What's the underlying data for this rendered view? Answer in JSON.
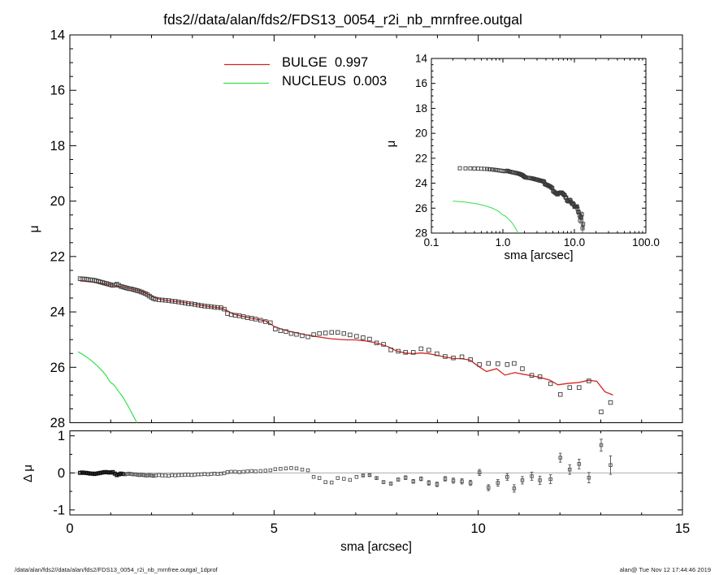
{
  "page": {
    "footer_left": "/data/alan/fds2//data/alan/fds2/FDS13_0054_r2i_nb_mrnfree.outgal_1dprof",
    "footer_right": "alan@  Tue Nov 12 17:44:46 2019"
  },
  "chart_data": {
    "type": "scatter",
    "title": "fds2//data/alan/fds2/FDS13_0054_r2i_nb_mrnfree.outgal",
    "legend": [
      {
        "label": "BULGE",
        "value": "0.997",
        "color": "#d42422"
      },
      {
        "label": "NUCLEUS",
        "value": "0.003",
        "color": "#35e04c"
      }
    ],
    "colors": {
      "frame": "#000000",
      "data_symbol": "#3a3a3a",
      "residual_symbol": "#505050",
      "bulge": "#d42422",
      "nucleus": "#35e04c",
      "zero_line": "#ababab",
      "background": "#ffffff"
    },
    "main_panel": {
      "ylabel": "μ",
      "xlim": [
        0,
        15
      ],
      "ylim": [
        28,
        14
      ],
      "x_major_ticks": [
        0,
        5,
        10,
        15
      ],
      "x_minor_step": 1,
      "y_major_ticks": [
        14,
        16,
        18,
        20,
        22,
        24,
        26,
        28
      ],
      "y_minor_step": 0.5,
      "grid": false
    },
    "inset_panel": {
      "xlabel": "sma [arcsec]",
      "ylabel": "μ",
      "xscale": "log",
      "xlim": [
        0.1,
        100.0
      ],
      "ylim": [
        28,
        14
      ],
      "x_major_ticks": [
        0.1,
        1.0,
        10.0,
        100.0
      ],
      "x_tick_labels": [
        "0.1",
        "1.0",
        "10.0",
        "100.0"
      ],
      "y_major_ticks": [
        14,
        16,
        18,
        20,
        22,
        24,
        26,
        28
      ],
      "y_minor_step": 0.5
    },
    "residual_panel": {
      "xlabel": "sma [arcsec]",
      "ylabel": "Δ μ",
      "xlim": [
        0,
        15
      ],
      "ylim": [
        -1.135,
        1.135
      ],
      "x_major_ticks": [
        0,
        5,
        10,
        15
      ],
      "x_minor_step": 1,
      "y_major_ticks": [
        -1,
        0,
        1
      ],
      "y_minor_step": 0.5
    },
    "series": {
      "data": [
        [
          0.25,
          22.8
        ],
        [
          0.3,
          22.81
        ],
        [
          0.35,
          22.81
        ],
        [
          0.4,
          22.82
        ],
        [
          0.45,
          22.83
        ],
        [
          0.5,
          22.84
        ],
        [
          0.55,
          22.85
        ],
        [
          0.6,
          22.86
        ],
        [
          0.65,
          22.88
        ],
        [
          0.7,
          22.9
        ],
        [
          0.75,
          22.92
        ],
        [
          0.8,
          22.94
        ],
        [
          0.85,
          22.96
        ],
        [
          0.9,
          22.98
        ],
        [
          0.95,
          23.0
        ],
        [
          1.0,
          23.02
        ],
        [
          1.05,
          23.04
        ],
        [
          1.1,
          23.03
        ],
        [
          1.15,
          23.0
        ],
        [
          1.2,
          23.04
        ],
        [
          1.25,
          23.08
        ],
        [
          1.3,
          23.1
        ],
        [
          1.35,
          23.12
        ],
        [
          1.4,
          23.14
        ],
        [
          1.45,
          23.16
        ],
        [
          1.5,
          23.17
        ],
        [
          1.55,
          23.19
        ],
        [
          1.6,
          23.21
        ],
        [
          1.65,
          23.23
        ],
        [
          1.7,
          23.25
        ],
        [
          1.75,
          23.28
        ],
        [
          1.8,
          23.31
        ],
        [
          1.85,
          23.34
        ],
        [
          1.9,
          23.38
        ],
        [
          1.95,
          23.43
        ],
        [
          2.0,
          23.48
        ],
        [
          2.05,
          23.52
        ],
        [
          2.1,
          23.54
        ],
        [
          2.18,
          23.56
        ],
        [
          2.26,
          23.57
        ],
        [
          2.34,
          23.58
        ],
        [
          2.42,
          23.59
        ],
        [
          2.5,
          23.61
        ],
        [
          2.58,
          23.62
        ],
        [
          2.66,
          23.64
        ],
        [
          2.74,
          23.66
        ],
        [
          2.82,
          23.68
        ],
        [
          2.9,
          23.7
        ],
        [
          2.98,
          23.71
        ],
        [
          3.06,
          23.73
        ],
        [
          3.14,
          23.75
        ],
        [
          3.22,
          23.77
        ],
        [
          3.3,
          23.79
        ],
        [
          3.38,
          23.8
        ],
        [
          3.46,
          23.81
        ],
        [
          3.54,
          23.83
        ],
        [
          3.62,
          23.84
        ],
        [
          3.7,
          23.85
        ],
        [
          3.78,
          23.9
        ],
        [
          3.86,
          24.06
        ],
        [
          3.95,
          24.1
        ],
        [
          4.05,
          24.12
        ],
        [
          4.15,
          24.14
        ],
        [
          4.25,
          24.17
        ],
        [
          4.35,
          24.21
        ],
        [
          4.45,
          24.23
        ],
        [
          4.55,
          24.26
        ],
        [
          4.67,
          24.3
        ],
        [
          4.79,
          24.35
        ],
        [
          4.91,
          24.39
        ],
        [
          5.03,
          24.62
        ],
        [
          5.16,
          24.68
        ],
        [
          5.29,
          24.71
        ],
        [
          5.42,
          24.78
        ],
        [
          5.55,
          24.81
        ],
        [
          5.69,
          24.86
        ],
        [
          5.83,
          24.9
        ],
        [
          5.97,
          24.82
        ],
        [
          6.11,
          24.78
        ],
        [
          6.26,
          24.76
        ],
        [
          6.41,
          24.74
        ],
        [
          6.56,
          24.74
        ],
        [
          6.71,
          24.78
        ],
        [
          6.86,
          24.83
        ],
        [
          7.02,
          24.88
        ],
        [
          7.18,
          24.93
        ],
        [
          7.34,
          24.98
        ],
        [
          7.51,
          25.12
        ],
        [
          7.68,
          25.17
        ],
        [
          7.86,
          25.37
        ],
        [
          8.04,
          25.42
        ],
        [
          8.22,
          25.46
        ],
        [
          8.41,
          25.46
        ],
        [
          8.6,
          25.33
        ],
        [
          8.79,
          25.38
        ],
        [
          8.99,
          25.51
        ],
        [
          9.19,
          25.61
        ],
        [
          9.39,
          25.66
        ],
        [
          9.6,
          25.62
        ],
        [
          9.81,
          25.72
        ],
        [
          10.03,
          25.9,
          0.12
        ],
        [
          10.25,
          25.86,
          0.12
        ],
        [
          10.48,
          25.87,
          0.12
        ],
        [
          10.71,
          25.9,
          0.12
        ],
        [
          10.88,
          25.86,
          0.13
        ],
        [
          11.08,
          26.05,
          0.14
        ],
        [
          11.31,
          26.29,
          0.16
        ],
        [
          11.51,
          26.34,
          0.18
        ],
        [
          11.77,
          26.59,
          0.22
        ],
        [
          12.01,
          26.98,
          0.3
        ],
        [
          12.24,
          26.73,
          0.25
        ],
        [
          12.47,
          26.73,
          0.25
        ],
        [
          12.71,
          26.49,
          0.22
        ],
        [
          13.01,
          27.61,
          0.5
        ],
        [
          13.24,
          27.27,
          0.4
        ]
      ],
      "bulge": [
        [
          0.25,
          22.88
        ],
        [
          0.45,
          22.91
        ],
        [
          0.65,
          22.94
        ],
        [
          0.85,
          22.98
        ],
        [
          1.05,
          23.03
        ],
        [
          1.25,
          23.09
        ],
        [
          1.45,
          23.15
        ],
        [
          1.65,
          23.22
        ],
        [
          1.85,
          23.32
        ],
        [
          2.0,
          23.43
        ],
        [
          2.15,
          23.52
        ],
        [
          2.3,
          23.57
        ],
        [
          2.5,
          23.61
        ],
        [
          2.7,
          23.64
        ],
        [
          2.9,
          23.69
        ],
        [
          3.1,
          23.73
        ],
        [
          3.3,
          23.78
        ],
        [
          3.5,
          23.82
        ],
        [
          3.7,
          23.86
        ],
        [
          3.85,
          23.95
        ],
        [
          4.0,
          24.08
        ],
        [
          4.2,
          24.15
        ],
        [
          4.4,
          24.21
        ],
        [
          4.6,
          24.27
        ],
        [
          4.8,
          24.33
        ],
        [
          5.0,
          24.52
        ],
        [
          5.2,
          24.63
        ],
        [
          5.4,
          24.71
        ],
        [
          5.6,
          24.77
        ],
        [
          5.8,
          24.83
        ],
        [
          6.0,
          24.88
        ],
        [
          6.2,
          24.93
        ],
        [
          6.4,
          24.97
        ],
        [
          6.6,
          24.99
        ],
        [
          6.8,
          25.01
        ],
        [
          7.0,
          25.01
        ],
        [
          7.2,
          25.04
        ],
        [
          7.4,
          25.09
        ],
        [
          7.6,
          25.16
        ],
        [
          7.8,
          25.26
        ],
        [
          8.0,
          25.41
        ],
        [
          8.2,
          25.48
        ],
        [
          8.4,
          25.51
        ],
        [
          8.6,
          25.48
        ],
        [
          8.8,
          25.51
        ],
        [
          9.0,
          25.57
        ],
        [
          9.2,
          25.63
        ],
        [
          9.4,
          25.68
        ],
        [
          9.6,
          25.69
        ],
        [
          9.8,
          25.74
        ],
        [
          10.0,
          25.96
        ],
        [
          10.2,
          26.15
        ],
        [
          10.45,
          26.05
        ],
        [
          10.65,
          26.28
        ],
        [
          10.9,
          26.19
        ],
        [
          11.1,
          26.25
        ],
        [
          11.3,
          26.3
        ],
        [
          11.5,
          26.36
        ],
        [
          11.75,
          26.46
        ],
        [
          11.95,
          26.63
        ],
        [
          12.2,
          26.58
        ],
        [
          12.45,
          26.55
        ],
        [
          12.7,
          26.47
        ],
        [
          12.9,
          26.5
        ],
        [
          13.1,
          26.88
        ],
        [
          13.3,
          27.0
        ]
      ],
      "nucleus": [
        [
          0.2,
          25.44
        ],
        [
          0.3,
          25.52
        ],
        [
          0.4,
          25.62
        ],
        [
          0.5,
          25.73
        ],
        [
          0.6,
          25.85
        ],
        [
          0.7,
          25.99
        ],
        [
          0.8,
          26.14
        ],
        [
          0.9,
          26.32
        ],
        [
          0.95,
          26.45
        ],
        [
          1.0,
          26.55
        ],
        [
          1.05,
          26.6
        ],
        [
          1.1,
          26.67
        ],
        [
          1.2,
          26.88
        ],
        [
          1.3,
          27.08
        ],
        [
          1.4,
          27.33
        ],
        [
          1.5,
          27.6
        ],
        [
          1.58,
          27.83
        ],
        [
          1.64,
          28.0
        ]
      ],
      "residuals": [
        [
          0.25,
          0.0
        ],
        [
          0.3,
          0.01
        ],
        [
          0.35,
          0.0
        ],
        [
          0.4,
          0.0
        ],
        [
          0.45,
          -0.01
        ],
        [
          0.5,
          -0.02
        ],
        [
          0.55,
          -0.02
        ],
        [
          0.6,
          -0.03
        ],
        [
          0.65,
          -0.02
        ],
        [
          0.7,
          -0.01
        ],
        [
          0.75,
          0.0
        ],
        [
          0.8,
          0.01
        ],
        [
          0.85,
          0.02
        ],
        [
          0.9,
          0.02
        ],
        [
          0.95,
          0.01
        ],
        [
          1.0,
          0.01
        ],
        [
          1.05,
          0.02
        ],
        [
          1.1,
          -0.02
        ],
        [
          1.15,
          -0.06
        ],
        [
          1.2,
          -0.04
        ],
        [
          1.25,
          -0.02
        ],
        [
          1.3,
          -0.03
        ],
        [
          1.35,
          -0.04
        ],
        [
          1.4,
          -0.03
        ],
        [
          1.45,
          -0.02
        ],
        [
          1.5,
          -0.03
        ],
        [
          1.55,
          -0.04
        ],
        [
          1.6,
          -0.04
        ],
        [
          1.65,
          -0.05
        ],
        [
          1.7,
          -0.06
        ],
        [
          1.75,
          -0.05
        ],
        [
          1.8,
          -0.06
        ],
        [
          1.85,
          -0.07
        ],
        [
          1.9,
          -0.07
        ],
        [
          1.95,
          -0.06
        ],
        [
          2.0,
          -0.07
        ],
        [
          2.05,
          -0.08
        ],
        [
          2.1,
          -0.07
        ],
        [
          2.18,
          -0.06
        ],
        [
          2.26,
          -0.07
        ],
        [
          2.34,
          -0.07
        ],
        [
          2.42,
          -0.08
        ],
        [
          2.5,
          -0.06
        ],
        [
          2.58,
          -0.07
        ],
        [
          2.66,
          -0.06
        ],
        [
          2.74,
          -0.06
        ],
        [
          2.82,
          -0.05
        ],
        [
          2.9,
          -0.05
        ],
        [
          2.98,
          -0.06
        ],
        [
          3.06,
          -0.05
        ],
        [
          3.14,
          -0.04
        ],
        [
          3.22,
          -0.04
        ],
        [
          3.3,
          -0.03
        ],
        [
          3.38,
          -0.04
        ],
        [
          3.46,
          -0.03
        ],
        [
          3.54,
          -0.02
        ],
        [
          3.62,
          -0.03
        ],
        [
          3.7,
          -0.02
        ],
        [
          3.78,
          -0.01
        ],
        [
          3.86,
          0.02
        ],
        [
          3.95,
          0.03
        ],
        [
          4.05,
          0.03
        ],
        [
          4.15,
          0.02
        ],
        [
          4.25,
          0.03
        ],
        [
          4.35,
          0.04
        ],
        [
          4.45,
          0.05
        ],
        [
          4.55,
          0.04
        ],
        [
          4.67,
          0.05
        ],
        [
          4.79,
          0.06
        ],
        [
          4.91,
          0.07
        ],
        [
          5.03,
          0.1
        ],
        [
          5.16,
          0.11
        ],
        [
          5.29,
          0.12
        ],
        [
          5.42,
          0.13
        ],
        [
          5.55,
          0.12
        ],
        [
          5.69,
          0.09
        ],
        [
          5.83,
          0.07
        ],
        [
          5.97,
          -0.11
        ],
        [
          6.11,
          -0.14
        ],
        [
          6.26,
          -0.25
        ],
        [
          6.41,
          -0.26
        ],
        [
          6.56,
          -0.14
        ],
        [
          6.71,
          -0.16
        ],
        [
          6.86,
          -0.19
        ],
        [
          7.02,
          -0.11
        ],
        [
          7.18,
          -0.07,
          0.03
        ],
        [
          7.34,
          -0.06,
          0.03
        ],
        [
          7.51,
          -0.14,
          0.03
        ],
        [
          7.68,
          -0.25,
          0.04
        ],
        [
          7.86,
          -0.29,
          0.04
        ],
        [
          8.04,
          -0.18,
          0.04
        ],
        [
          8.22,
          -0.13,
          0.05
        ],
        [
          8.41,
          -0.23,
          0.05
        ],
        [
          8.6,
          -0.16,
          0.05
        ],
        [
          8.79,
          -0.27,
          0.06
        ],
        [
          8.99,
          -0.31,
          0.06
        ],
        [
          9.19,
          -0.16,
          0.06
        ],
        [
          9.39,
          -0.21,
          0.07
        ],
        [
          9.6,
          -0.23,
          0.07
        ],
        [
          9.81,
          -0.27,
          0.07
        ],
        [
          10.03,
          0.01,
          0.08
        ],
        [
          10.25,
          -0.4,
          0.08
        ],
        [
          10.48,
          -0.27,
          0.09
        ],
        [
          10.71,
          -0.11,
          0.09
        ],
        [
          10.88,
          -0.42,
          0.1
        ],
        [
          11.08,
          -0.2,
          0.1
        ],
        [
          11.31,
          -0.09,
          0.11
        ],
        [
          11.51,
          -0.2,
          0.11
        ],
        [
          11.77,
          -0.17,
          0.12
        ],
        [
          12.01,
          0.41,
          0.12
        ],
        [
          12.24,
          0.09,
          0.13
        ],
        [
          12.47,
          0.24,
          0.13
        ],
        [
          12.71,
          -0.13,
          0.14
        ],
        [
          13.01,
          0.75,
          0.16
        ],
        [
          13.24,
          0.21,
          0.25
        ]
      ]
    }
  }
}
